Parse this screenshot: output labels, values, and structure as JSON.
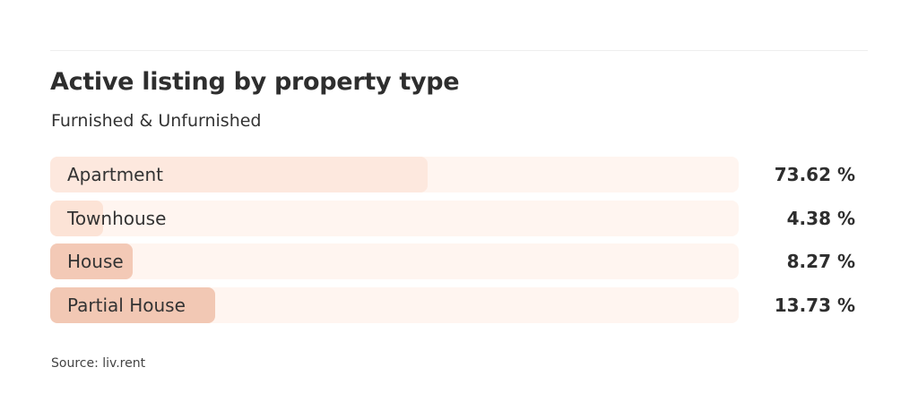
{
  "chart_data": {
    "type": "bar",
    "orientation": "horizontal",
    "title": "Active listing by property type",
    "subtitle": "Furnished & Unfurnished",
    "categories": [
      "Apartment",
      "Townhouse",
      "House",
      "Partial House"
    ],
    "values": [
      73.62,
      4.38,
      8.27,
      13.73
    ],
    "value_labels": [
      "73.62 %",
      "4.38 %",
      "8.27 %",
      "13.73 %"
    ],
    "colors": [
      "#fde8de",
      "#fce3d6",
      "#f3c9b6",
      "#f2c8b4"
    ],
    "track_color": "#fff5f0",
    "grid": false
  },
  "source": "Source: liv.rent"
}
